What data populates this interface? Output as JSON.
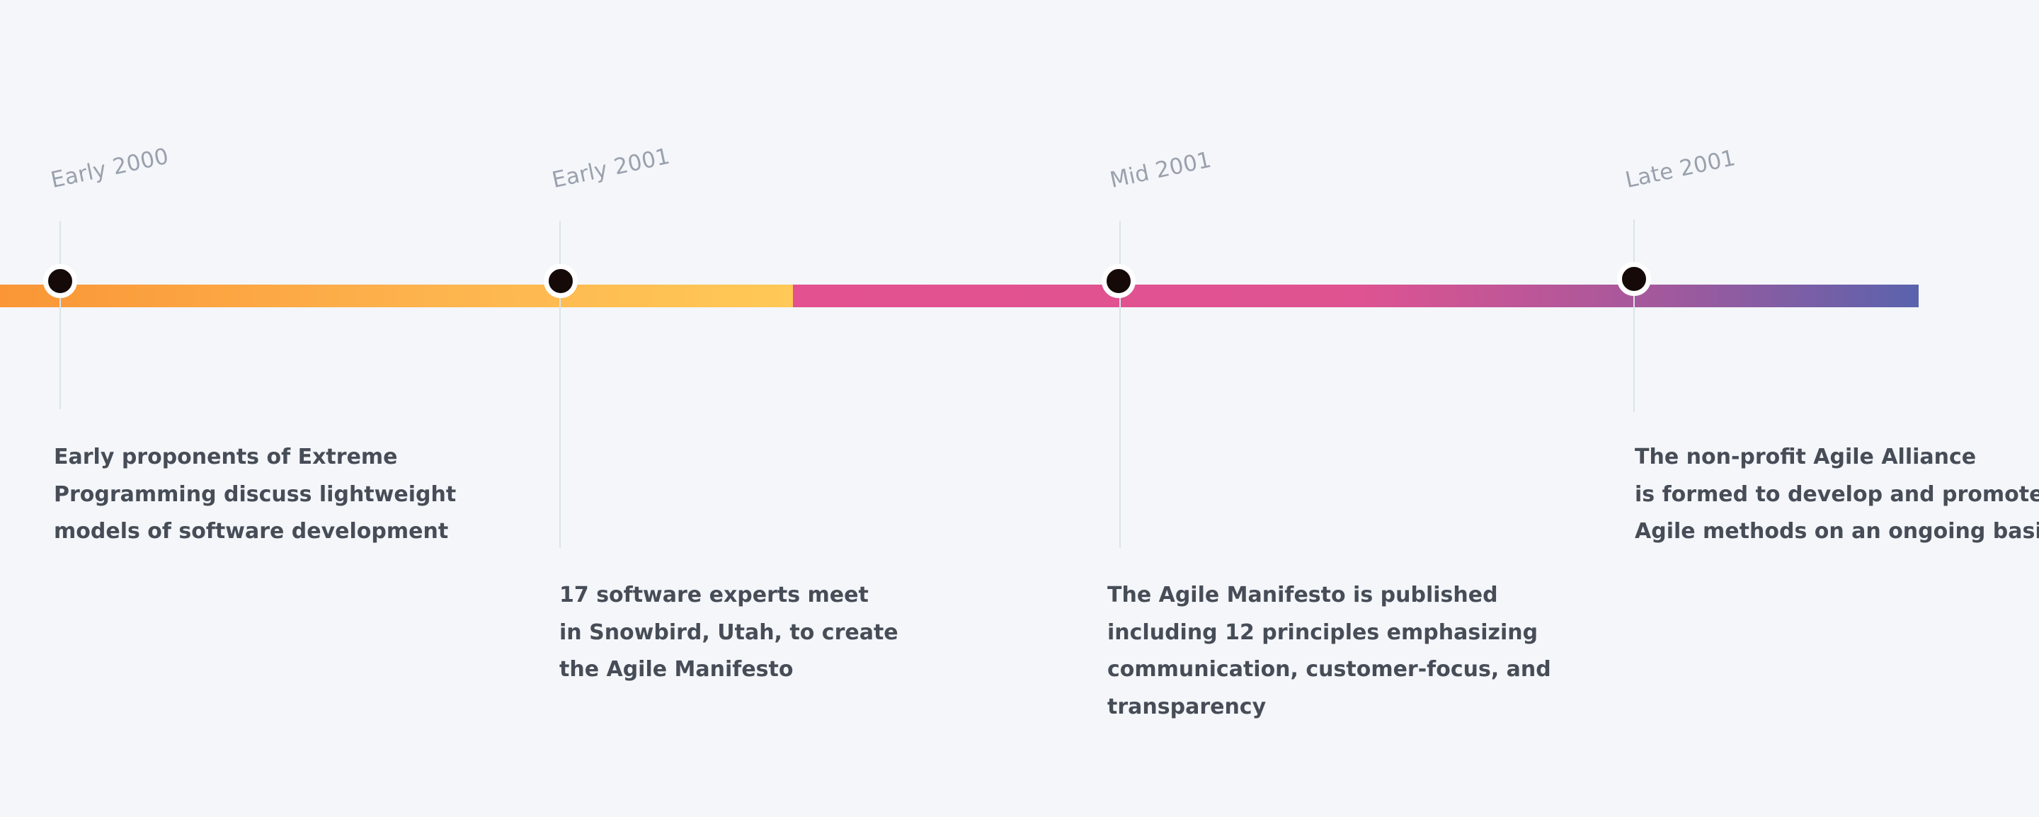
{
  "timeline": {
    "events": [
      {
        "date": "Early 2000",
        "lines": [
          "Early proponents of Extreme",
          "Programming discuss lightweight",
          "models of software development"
        ]
      },
      {
        "date": "Early 2001",
        "lines": [
          "17 software experts meet",
          "in Snowbird, Utah, to create",
          "the Agile Manifesto"
        ]
      },
      {
        "date": "Mid 2001",
        "lines": [
          "The Agile Manifesto is published",
          "including 12 principles emphasizing",
          "communication, customer-focus, and",
          "transparency"
        ]
      },
      {
        "date": "Late 2001",
        "lines": [
          "The non-profit Agile Alliance",
          "is formed to develop and promote",
          "Agile methods on an ongoing basis"
        ]
      }
    ],
    "colors": {
      "segment_1_start": "#fa9636",
      "segment_1_end": "#ffc957",
      "segment_2_start": "#e35190",
      "segment_2_end": "#5a63ad",
      "dot": "#150a08",
      "date_text": "#9aa1ad",
      "description_text": "#474d57"
    }
  }
}
